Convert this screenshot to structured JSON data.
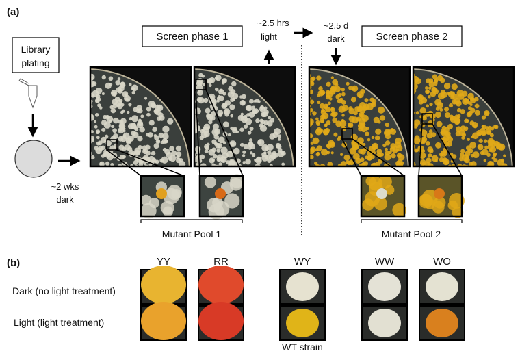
{
  "panel_a": {
    "label": "(a)",
    "library_plating": [
      "Library",
      "plating"
    ],
    "incubation_1": [
      "~2 wks",
      "dark"
    ],
    "screen_phase_1": "Screen phase 1",
    "light_step": [
      "~2.5 hrs",
      "light"
    ],
    "dark_step": [
      "~2.5 d",
      "dark"
    ],
    "screen_phase_2": "Screen phase 2",
    "pool_1": "Mutant Pool 1",
    "pool_2": "Mutant Pool 2",
    "colors": {
      "phase1_colony": "#d8d6c8",
      "phase2_colony": "#e0a818",
      "agar": "#3a3f3c",
      "background": "#0d0d0d"
    }
  },
  "panel_b": {
    "label": "(b)",
    "rows": [
      "Dark (no light treatment)",
      "Light (light treatment)"
    ],
    "strains": [
      {
        "name": "YY",
        "dark": "#e8b430",
        "light": "#e9a22c"
      },
      {
        "name": "RR",
        "dark": "#e04a2c",
        "light": "#d83a26"
      },
      {
        "name": "WY",
        "dark": "#e6e2d0",
        "light": "#e0b418",
        "note": "WT strain"
      },
      {
        "name": "WW",
        "dark": "#e4e2d6",
        "light": "#e2e0d2"
      },
      {
        "name": "WO",
        "dark": "#e4e2d2",
        "light": "#d9801e"
      }
    ]
  }
}
